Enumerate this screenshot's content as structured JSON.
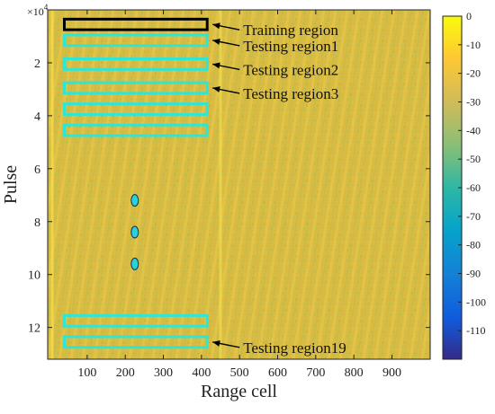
{
  "chart_data": {
    "type": "heatmap",
    "xlabel": "Range cell",
    "ylabel": "Pulse",
    "y_exponent_label": "×10",
    "y_exponent_power": "4",
    "xlim": [
      20,
      950
    ],
    "ylim": [
      0,
      13.2
    ],
    "y_reversed": true,
    "x_ticks": [
      100,
      200,
      300,
      400,
      500,
      600,
      700,
      800,
      900
    ],
    "x_tick_labels": [
      "100",
      "200",
      "300",
      "400",
      "500",
      "600",
      "700",
      "800",
      "900"
    ],
    "y_ticks": [
      2,
      4,
      6,
      8,
      10,
      12
    ],
    "y_tick_labels": [
      "2",
      "4",
      "6",
      "8",
      "10",
      "12"
    ],
    "colorbar": {
      "min": -120,
      "max": 0,
      "colormap": "parula",
      "ticks": [
        0,
        -10,
        -20,
        -30,
        -40,
        -50,
        -60,
        -70,
        -80,
        -90,
        -100,
        -110
      ],
      "tick_labels": [
        "0",
        "-10",
        "-20",
        "-30",
        "-40",
        "-50",
        "-60",
        "-70",
        "-80",
        "-90",
        "-100",
        "-110"
      ]
    },
    "background_level": -25,
    "regions": [
      {
        "label": "Training region",
        "color": "#000000",
        "x0": 40,
        "x1": 415,
        "y0": 0.35,
        "y1": 0.75
      },
      {
        "label": "Testing region1",
        "color": "#2ee6d6",
        "x0": 40,
        "x1": 415,
        "y0": 0.95,
        "y1": 1.35
      },
      {
        "label": "Testing region2",
        "color": "#2ee6d6",
        "x0": 40,
        "x1": 415,
        "y0": 1.85,
        "y1": 2.25
      },
      {
        "label": "Testing region3",
        "color": "#2ee6d6",
        "x0": 40,
        "x1": 415,
        "y0": 2.75,
        "y1": 3.15
      },
      {
        "label": "",
        "color": "#2ee6d6",
        "x0": 40,
        "x1": 415,
        "y0": 3.55,
        "y1": 3.95
      },
      {
        "label": "",
        "color": "#2ee6d6",
        "x0": 40,
        "x1": 415,
        "y0": 4.35,
        "y1": 4.75
      },
      {
        "label": "",
        "color": "#2ee6d6",
        "x0": 40,
        "x1": 415,
        "y0": 11.55,
        "y1": 11.95
      },
      {
        "label": "Testing region19",
        "color": "#2ee6d6",
        "x0": 40,
        "x1": 415,
        "y0": 12.35,
        "y1": 12.75
      }
    ],
    "ellipsis_dots": [
      {
        "x": 225,
        "y": 7.2
      },
      {
        "x": 225,
        "y": 8.4
      },
      {
        "x": 225,
        "y": 9.6
      }
    ],
    "annotations": [
      {
        "text": "Training region",
        "target_region": 0
      },
      {
        "text": "Testing region1",
        "target_region": 1
      },
      {
        "text": "Testing region2",
        "target_region": 2
      },
      {
        "text": "Testing region3",
        "target_region": 3
      },
      {
        "text": "Testing region19",
        "target_region": 7
      }
    ]
  }
}
